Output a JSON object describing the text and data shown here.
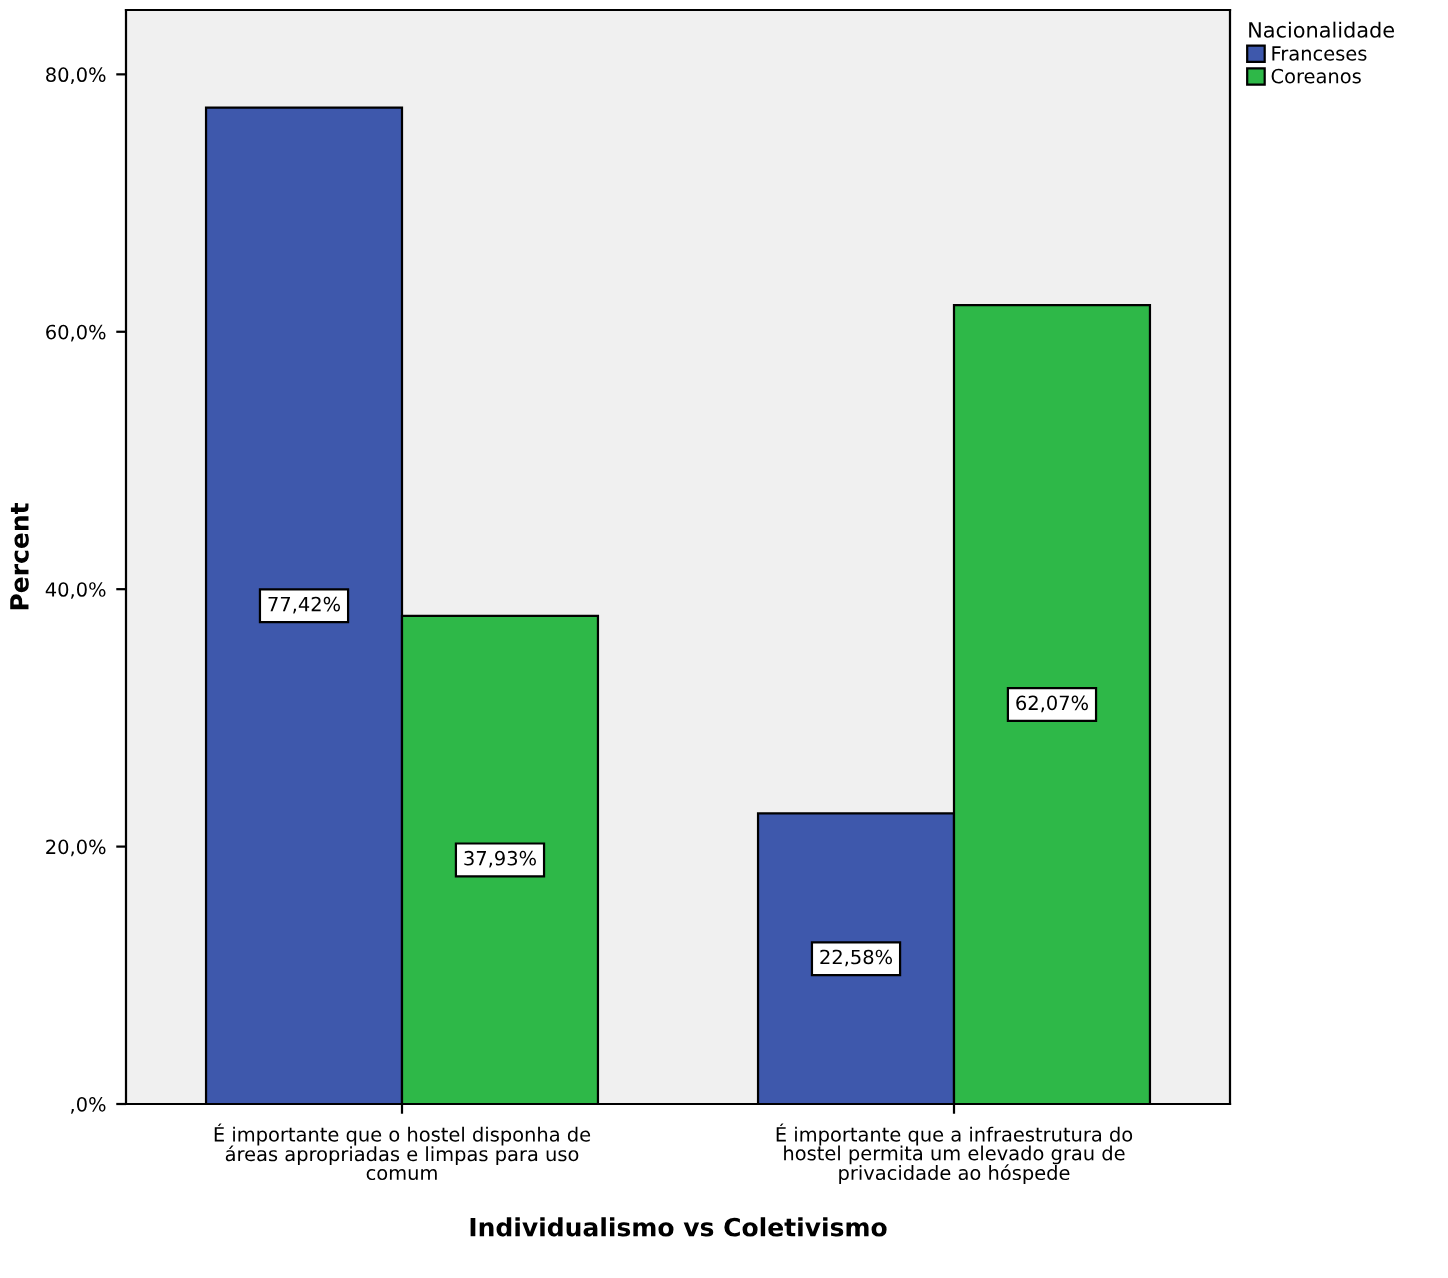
{
  "chart_data": {
    "type": "bar",
    "xlabel": "Individualismo vs Coletivismo",
    "ylabel": "Percent",
    "legend_title": "Nacionalidade",
    "categories": [
      "É importante que o hostel disponha de\náreas apropriadas e limpas para uso\ncomum",
      "É importante que a infraestrutura do\nhostel permita um elevado grau de\nprivacidade ao hóspede"
    ],
    "series": [
      {
        "name": "Franceses",
        "color": "#3e58ac",
        "values": [
          77.42,
          22.58
        ],
        "value_labels": [
          "77,42%",
          "22,58%"
        ]
      },
      {
        "name": "Coreanos",
        "color": "#2eb848",
        "values": [
          37.93,
          62.07
        ],
        "value_labels": [
          "37,93%",
          "62,07%"
        ]
      }
    ],
    "ylim": [
      0,
      85
    ],
    "yticks": [
      {
        "value": 0,
        "label": ",0%"
      },
      {
        "value": 20,
        "label": "20,0%"
      },
      {
        "value": 40,
        "label": "40,0%"
      },
      {
        "value": 60,
        "label": "60,0%"
      },
      {
        "value": 80,
        "label": "80,0%"
      }
    ],
    "grid": false,
    "legend": "top right"
  }
}
